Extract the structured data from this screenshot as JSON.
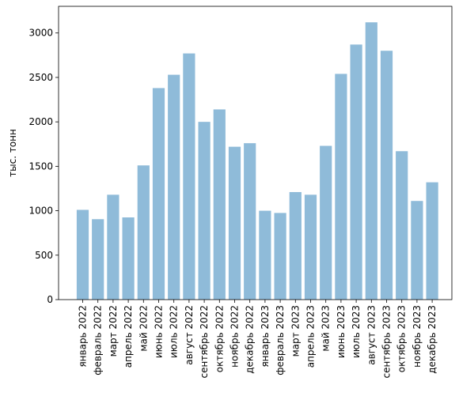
{
  "chart_data": {
    "type": "bar",
    "title": "",
    "xlabel": "",
    "ylabel": "тыс. тонн",
    "ylim": [
      0,
      3300
    ],
    "yticks": [
      0,
      500,
      1000,
      1500,
      2000,
      2500,
      3000
    ],
    "grid": false,
    "bar_color": "#8fbbd9",
    "categories": [
      "январь 2022",
      "февраль 2022",
      "март 2022",
      "апрель 2022",
      "май 2022",
      "июнь 2022",
      "июль 2022",
      "август 2022",
      "сентябрь 2022",
      "октябрь 2022",
      "ноябрь 2022",
      "декабрь 2022",
      "январь 2023",
      "февраль 2023",
      "март 2023",
      "апрель 2023",
      "май 2023",
      "июнь 2023",
      "июль 2023",
      "август 2023",
      "сентябрь 2023",
      "октябрь 2023",
      "ноябрь 2023",
      "декабрь 2023"
    ],
    "values": [
      1010,
      905,
      1180,
      925,
      1510,
      2380,
      2530,
      2770,
      2000,
      2140,
      1720,
      1760,
      1000,
      975,
      1210,
      1180,
      1730,
      2540,
      2870,
      3120,
      2800,
      1670,
      1110,
      1320
    ]
  }
}
